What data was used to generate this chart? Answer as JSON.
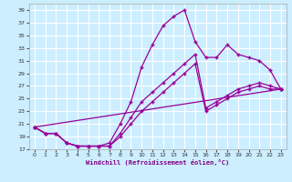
{
  "title": "",
  "xlabel": "Windchill (Refroidissement éolien,°C)",
  "bg_color": "#cceeff",
  "grid_color": "#ffffff",
  "line_color": "#990099",
  "xlim": [
    -0.5,
    23.5
  ],
  "ylim": [
    17,
    40
  ],
  "xticks": [
    0,
    1,
    2,
    3,
    4,
    5,
    6,
    7,
    8,
    9,
    10,
    11,
    12,
    13,
    14,
    15,
    16,
    17,
    18,
    19,
    20,
    21,
    22,
    23
  ],
  "yticks": [
    17,
    19,
    21,
    23,
    25,
    27,
    29,
    31,
    33,
    35,
    37,
    39
  ],
  "line1_x": [
    0,
    1,
    2,
    3,
    4,
    5,
    6,
    7,
    8,
    9,
    10,
    11,
    12,
    13,
    14,
    15,
    16,
    17,
    18,
    19,
    20,
    21,
    22,
    23
  ],
  "line1_y": [
    20.5,
    19.5,
    19.5,
    18.0,
    17.5,
    17.5,
    17.5,
    18.0,
    21.0,
    24.5,
    30.0,
    33.5,
    36.5,
    38.0,
    39.0,
    34.0,
    31.5,
    31.5,
    33.5,
    32.0,
    31.5,
    31.0,
    29.5,
    26.5
  ],
  "line2_x": [
    0,
    1,
    2,
    3,
    4,
    5,
    6,
    7,
    8,
    9,
    10,
    11,
    12,
    13,
    14,
    15,
    16,
    17,
    18,
    19,
    20,
    21,
    22,
    23
  ],
  "line2_y": [
    20.5,
    19.5,
    19.5,
    18.0,
    17.5,
    17.5,
    17.5,
    17.5,
    19.5,
    22.0,
    24.5,
    26.0,
    27.5,
    29.0,
    30.5,
    32.0,
    23.5,
    24.5,
    25.5,
    26.5,
    27.0,
    27.5,
    27.0,
    26.5
  ],
  "line3_x": [
    0,
    1,
    2,
    3,
    4,
    5,
    6,
    7,
    8,
    9,
    10,
    11,
    12,
    13,
    14,
    15,
    16,
    17,
    18,
    19,
    20,
    21,
    22,
    23
  ],
  "line3_y": [
    20.5,
    19.5,
    19.5,
    18.0,
    17.5,
    17.5,
    17.5,
    17.5,
    19.0,
    21.0,
    23.0,
    24.5,
    26.0,
    27.5,
    29.0,
    30.5,
    23.0,
    24.0,
    25.0,
    26.0,
    26.5,
    27.0,
    26.5,
    26.5
  ],
  "line4_x": [
    0,
    23
  ],
  "line4_y": [
    20.5,
    26.5
  ]
}
